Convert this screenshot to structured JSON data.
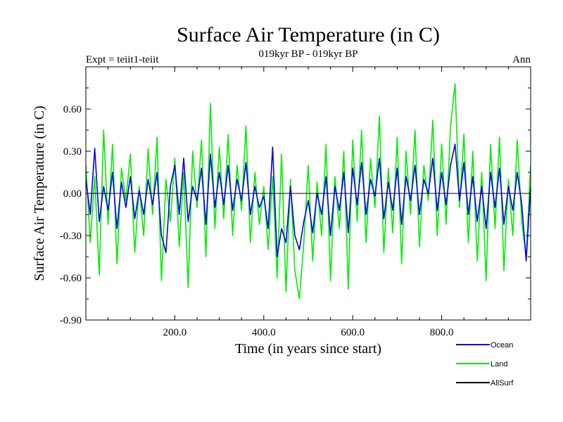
{
  "chart_data": {
    "type": "line",
    "title": "Surface Air Temperature (in C)",
    "subtitle": "019kyr BP - 019kyr BP",
    "left_label": "Expt = teiit1-teiit",
    "right_label": "Ann",
    "xlabel": "Time (in years since start)",
    "ylabel": "Surface Air Temperature (in C)",
    "xlim": [
      0,
      1000
    ],
    "ylim": [
      -0.9,
      0.9
    ],
    "x_ticks": [
      {
        "value": 200,
        "label": "200.0"
      },
      {
        "value": 400,
        "label": "400.0"
      },
      {
        "value": 600,
        "label": "600.0"
      },
      {
        "value": 800,
        "label": "800.0"
      }
    ],
    "y_ticks": [
      {
        "value": 0.6,
        "label": "0.60"
      },
      {
        "value": 0.3,
        "label": "0.30"
      },
      {
        "value": 0.0,
        "label": "0.00"
      },
      {
        "value": -0.3,
        "label": "-0.30"
      },
      {
        "value": -0.6,
        "label": "-0.60"
      },
      {
        "value": -0.9,
        "label": "-0.90"
      }
    ],
    "zero_line": true,
    "legend_position": "bottom-right",
    "series": [
      {
        "name": "Land",
        "color": "#00ee00",
        "x": [
          0,
          10,
          20,
          30,
          40,
          50,
          60,
          70,
          80,
          90,
          100,
          110,
          120,
          130,
          140,
          150,
          160,
          170,
          180,
          190,
          200,
          210,
          220,
          230,
          240,
          250,
          260,
          270,
          280,
          290,
          300,
          310,
          320,
          330,
          340,
          350,
          360,
          370,
          380,
          390,
          400,
          410,
          420,
          430,
          440,
          450,
          460,
          470,
          480,
          490,
          500,
          510,
          520,
          530,
          540,
          550,
          560,
          570,
          580,
          590,
          600,
          610,
          620,
          630,
          640,
          650,
          660,
          670,
          680,
          690,
          700,
          710,
          720,
          730,
          740,
          750,
          760,
          770,
          780,
          790,
          800,
          810,
          820,
          830,
          840,
          850,
          860,
          870,
          880,
          890,
          900,
          910,
          920,
          930,
          940,
          950,
          960,
          970,
          980,
          990,
          1000
        ],
        "values": [
          0.2,
          -0.35,
          0.12,
          -0.58,
          0.45,
          -0.22,
          0.35,
          -0.5,
          0.18,
          -0.05,
          0.28,
          -0.42,
          0.05,
          -0.3,
          0.32,
          -0.15,
          0.4,
          -0.62,
          0.1,
          -0.2,
          0.25,
          -0.38,
          0.15,
          -0.67,
          0.3,
          -0.1,
          0.38,
          -0.45,
          0.64,
          -0.25,
          0.33,
          -0.18,
          0.42,
          -0.3,
          0.2,
          -0.12,
          0.48,
          -0.35,
          0.15,
          -0.22,
          0.05,
          -0.4,
          0.12,
          -0.6,
          0.28,
          -0.7,
          0.1,
          -0.55,
          -0.75,
          -0.35,
          0.2,
          -0.48,
          0.08,
          -0.3,
          0.35,
          -0.62,
          0.12,
          -0.25,
          0.3,
          -0.68,
          0.38,
          -0.2,
          0.45,
          -0.35,
          0.25,
          -0.1,
          0.55,
          -0.42,
          0.18,
          -0.28,
          0.4,
          -0.5,
          0.3,
          -0.15,
          0.45,
          -0.38,
          0.2,
          -0.05,
          0.52,
          -0.3,
          0.35,
          -0.22,
          0.48,
          0.78,
          -0.1,
          0.42,
          -0.35,
          0.3,
          -0.48,
          0.15,
          -0.62,
          0.35,
          -0.25,
          0.4,
          -0.55,
          0.1,
          -0.3,
          0.38,
          -0.2,
          -0.45,
          0.2
        ]
      },
      {
        "name": "Ocean",
        "color": "#0000ee",
        "x": [
          0,
          10,
          20,
          30,
          40,
          50,
          60,
          70,
          80,
          90,
          100,
          110,
          120,
          130,
          140,
          150,
          160,
          170,
          180,
          190,
          200,
          210,
          220,
          230,
          240,
          250,
          260,
          270,
          280,
          290,
          300,
          310,
          320,
          330,
          340,
          350,
          360,
          370,
          380,
          390,
          400,
          410,
          420,
          430,
          440,
          450,
          460,
          470,
          480,
          490,
          500,
          510,
          520,
          530,
          540,
          550,
          560,
          570,
          580,
          590,
          600,
          610,
          620,
          630,
          640,
          650,
          660,
          670,
          680,
          690,
          700,
          710,
          720,
          730,
          740,
          750,
          760,
          770,
          780,
          790,
          800,
          810,
          820,
          830,
          840,
          850,
          860,
          870,
          880,
          890,
          900,
          910,
          920,
          930,
          940,
          950,
          960,
          970,
          980,
          990,
          1000
        ],
        "values": [
          0.1,
          -0.15,
          0.32,
          -0.2,
          0.05,
          -0.12,
          0.15,
          -0.25,
          0.08,
          -0.1,
          0.12,
          -0.18,
          0.02,
          -0.15,
          0.1,
          -0.08,
          0.15,
          -0.3,
          -0.42,
          0.05,
          0.2,
          -0.15,
          0.25,
          -0.2,
          0.05,
          -0.05,
          0.18,
          -0.22,
          0.28,
          -0.1,
          0.15,
          -0.08,
          0.2,
          -0.12,
          0.1,
          -0.05,
          0.22,
          -0.15,
          0.05,
          -0.1,
          -0.02,
          -0.25,
          0.33,
          -0.45,
          -0.25,
          -0.35,
          0.05,
          -0.3,
          -0.4,
          -0.2,
          -0.05,
          -0.28,
          0.0,
          -0.15,
          0.12,
          -0.3,
          0.05,
          -0.12,
          0.15,
          -0.28,
          0.18,
          -0.08,
          0.22,
          -0.15,
          0.1,
          -0.02,
          0.25,
          -0.18,
          0.08,
          -0.12,
          0.18,
          -0.22,
          0.12,
          -0.05,
          0.2,
          -0.15,
          0.1,
          0.0,
          0.25,
          -0.12,
          0.15,
          -0.08,
          0.2,
          0.35,
          -0.05,
          0.22,
          -0.15,
          0.12,
          -0.2,
          0.05,
          -0.25,
          0.15,
          -0.1,
          0.18,
          -0.22,
          0.05,
          -0.12,
          0.15,
          -0.08,
          -0.48,
          0.05
        ]
      },
      {
        "name": "AllSurf",
        "color": "#000000",
        "x": [],
        "values": []
      }
    ]
  }
}
